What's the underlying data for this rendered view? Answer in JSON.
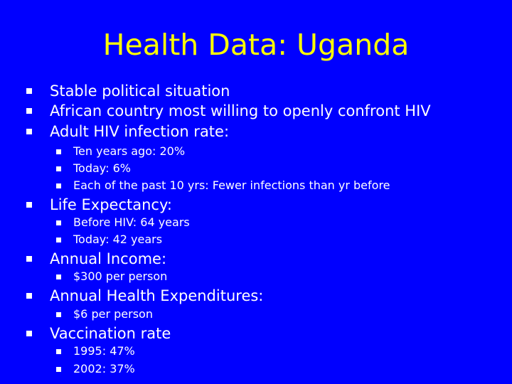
{
  "slide": {
    "title": "Health Data: Uganda",
    "colors": {
      "background": "#0000ff",
      "title": "#ffff00",
      "text": "#ffffff",
      "bullet": "#ffffff"
    },
    "bullets": [
      {
        "level": 1,
        "text": "Stable political situation"
      },
      {
        "level": 1,
        "text": "African country most willing to openly confront HIV"
      },
      {
        "level": 1,
        "text": "Adult HIV infection rate:"
      },
      {
        "level": 2,
        "text": "Ten years ago: 20%"
      },
      {
        "level": 2,
        "text": "Today: 6%"
      },
      {
        "level": 2,
        "text": "Each of the past 10 yrs: Fewer infections than yr before"
      },
      {
        "level": 1,
        "text": "Life Expectancy:"
      },
      {
        "level": 2,
        "text": "Before HIV: 64 years"
      },
      {
        "level": 2,
        "text": "Today: 42 years"
      },
      {
        "level": 1,
        "text": "Annual Income:"
      },
      {
        "level": 2,
        "text": "$300 per person"
      },
      {
        "level": 1,
        "text": "Annual Health Expenditures:"
      },
      {
        "level": 2,
        "text": "$6 per person"
      },
      {
        "level": 1,
        "text": "Vaccination rate"
      },
      {
        "level": 2,
        "text": "1995: 47%"
      },
      {
        "level": 2,
        "text": "2002: 37%"
      }
    ]
  }
}
